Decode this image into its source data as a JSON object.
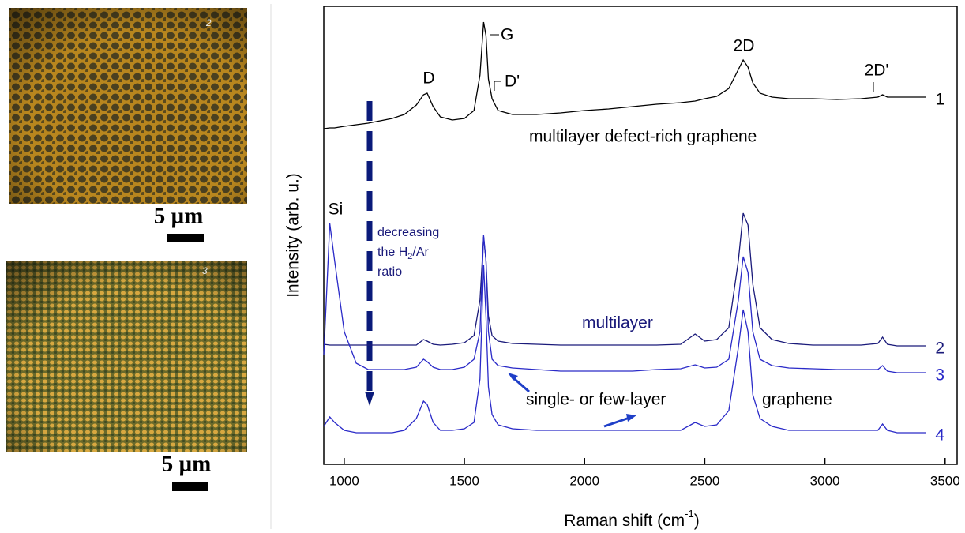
{
  "micrographs": [
    {
      "label": "2",
      "scale": "5 µm"
    },
    {
      "label": "3",
      "scale": "5 µm"
    }
  ],
  "chart_data": {
    "type": "line",
    "x_label": "Raman shift (cm",
    "x_label_sup": "-1",
    "x_label_end": ")",
    "y_label": "Intensity (arb. u.)",
    "x": [
      915,
      940,
      960,
      1000,
      1050,
      1100,
      1150,
      1200,
      1250,
      1300,
      1330,
      1345,
      1370,
      1400,
      1450,
      1500,
      1540,
      1565,
      1580,
      1590,
      1600,
      1615,
      1640,
      1700,
      1800,
      1900,
      2000,
      2100,
      2200,
      2300,
      2400,
      2460,
      2500,
      2550,
      2600,
      2640,
      2660,
      2680,
      2700,
      2730,
      2780,
      2850,
      2950,
      3050,
      3150,
      3220,
      3240,
      3260,
      3300,
      3420
    ],
    "series": [
      {
        "name": "1",
        "color": "#000000",
        "values": [
          425,
          426,
          426,
          428,
          430,
          432,
          435,
          438,
          443,
          455,
          468,
          470,
          453,
          440,
          436,
          438,
          448,
          493,
          560,
          543,
          488,
          463,
          448,
          443,
          443,
          445,
          448,
          450,
          453,
          456,
          458,
          460,
          463,
          466,
          476,
          500,
          512,
          503,
          483,
          470,
          465,
          463,
          463,
          462,
          463,
          465,
          468,
          465,
          465,
          465
        ]
      },
      {
        "name": "2",
        "color": "#1a1a7a",
        "values": [
          152,
          151,
          151,
          151,
          151,
          151,
          151,
          151,
          151,
          151,
          158,
          156,
          152,
          151,
          152,
          154,
          163,
          208,
          288,
          258,
          188,
          163,
          156,
          153,
          152,
          151,
          151,
          151,
          151,
          151,
          152,
          165,
          156,
          158,
          173,
          258,
          318,
          303,
          228,
          173,
          158,
          153,
          151,
          151,
          151,
          153,
          161,
          152,
          150,
          150
        ]
      },
      {
        "name": "3",
        "color": "#2a2ac8",
        "values": [
          138,
          305,
          258,
          168,
          128,
          120,
          120,
          120,
          120,
          123,
          133,
          130,
          123,
          120,
          120,
          123,
          133,
          168,
          290,
          258,
          168,
          133,
          125,
          122,
          120,
          118,
          118,
          118,
          118,
          120,
          121,
          126,
          122,
          123,
          133,
          208,
          263,
          243,
          168,
          133,
          125,
          122,
          121,
          120,
          120,
          120,
          125,
          118,
          116,
          116
        ]
      },
      {
        "name": "4",
        "color": "#2a2ac8",
        "values": [
          48,
          60,
          53,
          43,
          40,
          40,
          40,
          40,
          43,
          58,
          80,
          76,
          53,
          43,
          43,
          45,
          53,
          108,
          253,
          188,
          98,
          63,
          50,
          45,
          43,
          43,
          43,
          43,
          43,
          43,
          43,
          53,
          48,
          50,
          68,
          148,
          196,
          168,
          88,
          58,
          48,
          43,
          43,
          43,
          43,
          43,
          51,
          43,
          40,
          40
        ]
      }
    ],
    "xlim": [
      915,
      3550
    ],
    "xticks": [
      1000,
      1500,
      2000,
      2500,
      3000,
      3500
    ],
    "ylim": [
      0,
      580
    ],
    "annotations": {
      "d": "D",
      "g": "G",
      "d_prime": "D'",
      "two_d": "2D",
      "two_d_prime": "2D'",
      "si": "Si",
      "defect_rich": "multilayer defect-rich graphene",
      "multilayer": "multilayer",
      "single_few": "single- or few-layer",
      "graphene": "graphene",
      "decreasing": "decreasing",
      "the_h": "the H",
      "h_sub": "2",
      "ar": "/Ar",
      "ratio": "ratio"
    }
  }
}
